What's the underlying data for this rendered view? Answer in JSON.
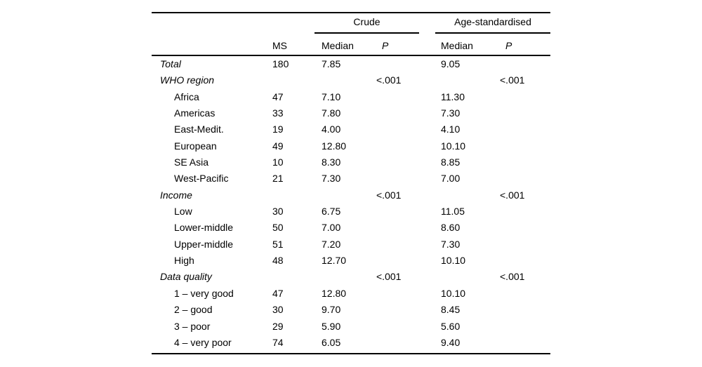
{
  "page": {
    "background_color": "#ffffff",
    "text_color": "#000000"
  },
  "table": {
    "spanners": [
      {
        "label": "Crude"
      },
      {
        "label": "Age-standardised"
      }
    ],
    "column_headers": {
      "label": "",
      "ms": "MS",
      "median_crude": "Median",
      "p_crude": "P",
      "median_std": "Median",
      "p_std": "P"
    },
    "rows": [
      {
        "label": "Total",
        "style": "group",
        "ms": "180",
        "median_crude": "7.85",
        "p_crude": "",
        "median_std": "9.05",
        "p_std": ""
      },
      {
        "label": "WHO region",
        "style": "group",
        "ms": "",
        "median_crude": "",
        "p_crude": "<.001",
        "median_std": "",
        "p_std": "<.001"
      },
      {
        "label": "Africa",
        "style": "item",
        "ms": "47",
        "median_crude": "7.10",
        "p_crude": "",
        "median_std": "11.30",
        "p_std": ""
      },
      {
        "label": "Americas",
        "style": "item",
        "ms": "33",
        "median_crude": "7.80",
        "p_crude": "",
        "median_std": "7.30",
        "p_std": ""
      },
      {
        "label": "East-Medit.",
        "style": "item",
        "ms": "19",
        "median_crude": "4.00",
        "p_crude": "",
        "median_std": "4.10",
        "p_std": ""
      },
      {
        "label": "European",
        "style": "item",
        "ms": "49",
        "median_crude": "12.80",
        "p_crude": "",
        "median_std": "10.10",
        "p_std": ""
      },
      {
        "label": "SE Asia",
        "style": "item",
        "ms": "10",
        "median_crude": "8.30",
        "p_crude": "",
        "median_std": "8.85",
        "p_std": ""
      },
      {
        "label": "West-Pacific",
        "style": "item",
        "ms": "21",
        "median_crude": "7.30",
        "p_crude": "",
        "median_std": "7.00",
        "p_std": ""
      },
      {
        "label": "Income",
        "style": "group",
        "ms": "",
        "median_crude": "",
        "p_crude": "<.001",
        "median_std": "",
        "p_std": "<.001"
      },
      {
        "label": "Low",
        "style": "item",
        "ms": "30",
        "median_crude": "6.75",
        "p_crude": "",
        "median_std": "11.05",
        "p_std": ""
      },
      {
        "label": "Lower-middle",
        "style": "item",
        "ms": "50",
        "median_crude": "7.00",
        "p_crude": "",
        "median_std": "8.60",
        "p_std": ""
      },
      {
        "label": "Upper-middle",
        "style": "item",
        "ms": "51",
        "median_crude": "7.20",
        "p_crude": "",
        "median_std": "7.30",
        "p_std": ""
      },
      {
        "label": "High",
        "style": "item",
        "ms": "48",
        "median_crude": "12.70",
        "p_crude": "",
        "median_std": "10.10",
        "p_std": ""
      },
      {
        "label": "Data quality",
        "style": "group",
        "ms": "",
        "median_crude": "",
        "p_crude": "<.001",
        "median_std": "",
        "p_std": "<.001"
      },
      {
        "label": "1 – very good",
        "style": "item",
        "ms": "47",
        "median_crude": "12.80",
        "p_crude": "",
        "median_std": "10.10",
        "p_std": ""
      },
      {
        "label": "2 – good",
        "style": "item",
        "ms": "30",
        "median_crude": "9.70",
        "p_crude": "",
        "median_std": "8.45",
        "p_std": ""
      },
      {
        "label": "3 – poor",
        "style": "item",
        "ms": "29",
        "median_crude": "5.90",
        "p_crude": "",
        "median_std": "5.60",
        "p_std": ""
      },
      {
        "label": "4 – very poor",
        "style": "item",
        "ms": "74",
        "median_crude": "6.05",
        "p_crude": "",
        "median_std": "9.40",
        "p_std": ""
      }
    ]
  }
}
